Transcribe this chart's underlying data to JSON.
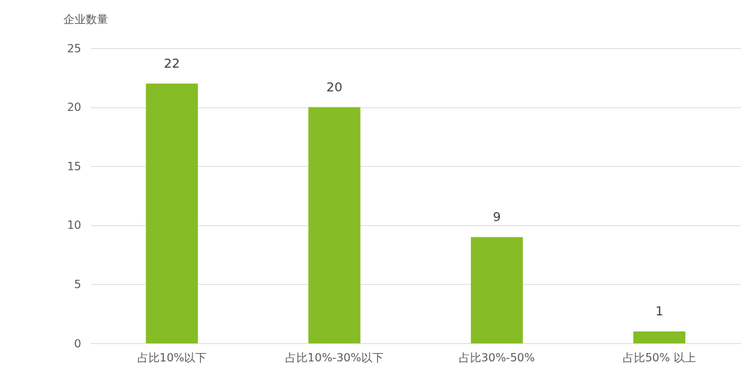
{
  "chart_data": {
    "type": "bar",
    "ylabel": "企业数量",
    "categories": [
      "占比10%以下",
      "占比10%-30%以下",
      "占比30%-50%",
      "占比50% 以上"
    ],
    "values": [
      22,
      20,
      9,
      1
    ],
    "color": "#86bc25",
    "ylim": [
      0,
      25
    ],
    "yticks": [
      0,
      5,
      10,
      15,
      20,
      25
    ],
    "grid": "y",
    "data_labels": true
  }
}
